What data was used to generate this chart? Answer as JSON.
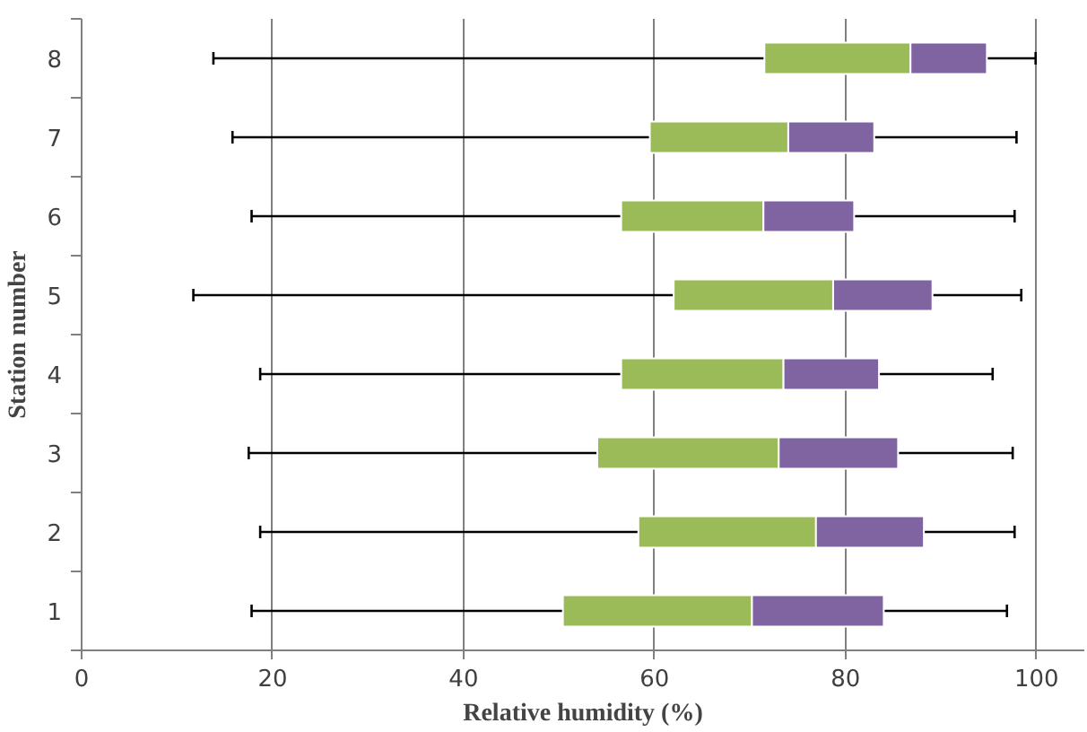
{
  "chart_data": {
    "type": "box",
    "orientation": "horizontal",
    "xlabel": "Relative humidity (%)",
    "ylabel": "Station number",
    "categories": [
      "8",
      "7",
      "6",
      "5",
      "4",
      "3",
      "2",
      "1"
    ],
    "colors": [
      "#8064a2",
      "#8064a2",
      "#8064a2",
      "#8064a2",
      "#8064a2",
      "#8064a2",
      "#8064a2",
      "#8064a2"
    ],
    "series": [
      {
        "color": "#9bbb59",
        "boxes": [
          {
            "low": 13.8,
            "q1": 71.5,
            "median": 86.8,
            "q3": 94.8,
            "high": 99.9
          },
          {
            "low": 15.8,
            "q1": 59.5,
            "median": 74.0,
            "q3": 83.0,
            "high": 97.9
          },
          {
            "low": 17.8,
            "q1": 56.5,
            "median": 71.4,
            "q3": 80.9,
            "high": 97.7
          },
          {
            "low": 11.7,
            "q1": 62.0,
            "median": 78.7,
            "q3": 89.1,
            "high": 98.4
          },
          {
            "low": 18.7,
            "q1": 56.5,
            "median": 73.5,
            "q3": 83.5,
            "high": 95.4
          },
          {
            "low": 17.5,
            "q1": 54.0,
            "median": 73.0,
            "q3": 85.5,
            "high": 97.5
          },
          {
            "low": 18.7,
            "q1": 58.3,
            "median": 76.9,
            "q3": 88.2,
            "high": 97.7
          },
          {
            "low": 17.8,
            "q1": 50.4,
            "median": 70.2,
            "q3": 84.0,
            "high": 96.9
          }
        ]
      }
    ],
    "xlim": [
      0,
      105
    ],
    "xticks": [
      0,
      20,
      40,
      60,
      80,
      100
    ],
    "grid": "x"
  }
}
